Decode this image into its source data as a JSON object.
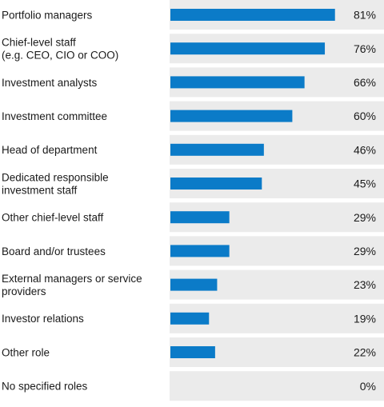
{
  "chart_data": {
    "type": "bar",
    "orientation": "horizontal",
    "categories": [
      [
        "Portfolio managers"
      ],
      [
        "Chief-level staff",
        "(e.g. CEO, CIO or COO)"
      ],
      [
        "Investment analysts"
      ],
      [
        "Investment committee"
      ],
      [
        "Head of department"
      ],
      [
        "Dedicated responsible",
        "investment staff"
      ],
      [
        "Other chief-level staff"
      ],
      [
        "Board and/or trustees"
      ],
      [
        "External managers or service",
        "providers"
      ],
      [
        "Investor relations"
      ],
      [
        "Other role"
      ],
      [
        "No specified roles"
      ]
    ],
    "values": [
      81,
      76,
      66,
      60,
      46,
      45,
      29,
      29,
      23,
      19,
      22,
      0
    ],
    "value_labels": [
      "81%",
      "76%",
      "66%",
      "60%",
      "46%",
      "45%",
      "29%",
      "29%",
      "23%",
      "19%",
      "22%",
      "0%"
    ],
    "xlim": [
      0,
      100
    ],
    "bar_color": "#0b7bc8",
    "row_background": "#ebebeb",
    "label_color": "#1a1a1a"
  }
}
